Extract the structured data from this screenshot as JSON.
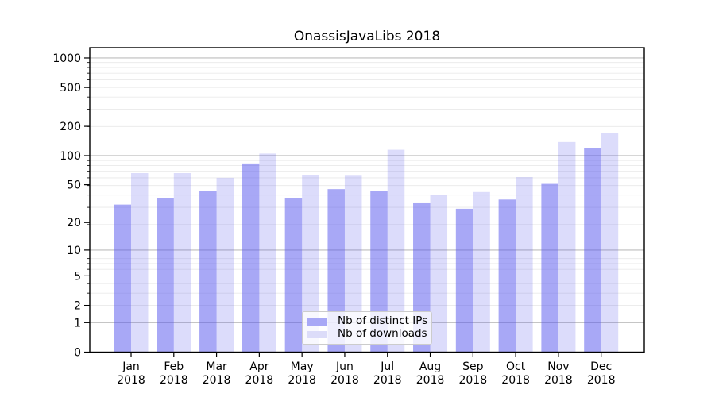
{
  "chart_data": {
    "type": "bar",
    "title": "OnassisJavaLibs 2018",
    "categories": [
      "Jan",
      "Feb",
      "Mar",
      "Apr",
      "May",
      "Jun",
      "Jul",
      "Aug",
      "Sep",
      "Oct",
      "Nov",
      "Dec"
    ],
    "category_year": "2018",
    "series": [
      {
        "name": "Nb of distinct IPs",
        "values": [
          31,
          36,
          43,
          83,
          36,
          45,
          43,
          32,
          28,
          35,
          51,
          119
        ],
        "base_color": "#5151ed",
        "opacity": 0.5,
        "rendered_color": "#a8a8f6"
      },
      {
        "name": "Nb of downloads",
        "values": [
          66,
          66,
          59,
          105,
          63,
          62,
          115,
          39,
          42,
          60,
          138,
          170
        ],
        "base_color": "#5151ed",
        "opacity": 0.2,
        "rendered_color": "#dcdcf9"
      }
    ],
    "y_axis": {
      "scale": "log1p",
      "tick_labels": [
        0,
        1,
        2,
        5,
        10,
        20,
        50,
        100,
        200,
        500,
        1000
      ],
      "major_grid_values": [
        1,
        10,
        100,
        1000
      ],
      "range": [
        0,
        1274
      ]
    },
    "legend": {
      "location": "lower-center",
      "entries": [
        "Nb of distinct IPs",
        "Nb of downloads"
      ]
    },
    "grid": {
      "major_color": "#bdbdbd",
      "minor_color": "#e9e9e9",
      "grid_on": true
    },
    "spine_color": "#000000",
    "tick_label_color": "#000000"
  }
}
